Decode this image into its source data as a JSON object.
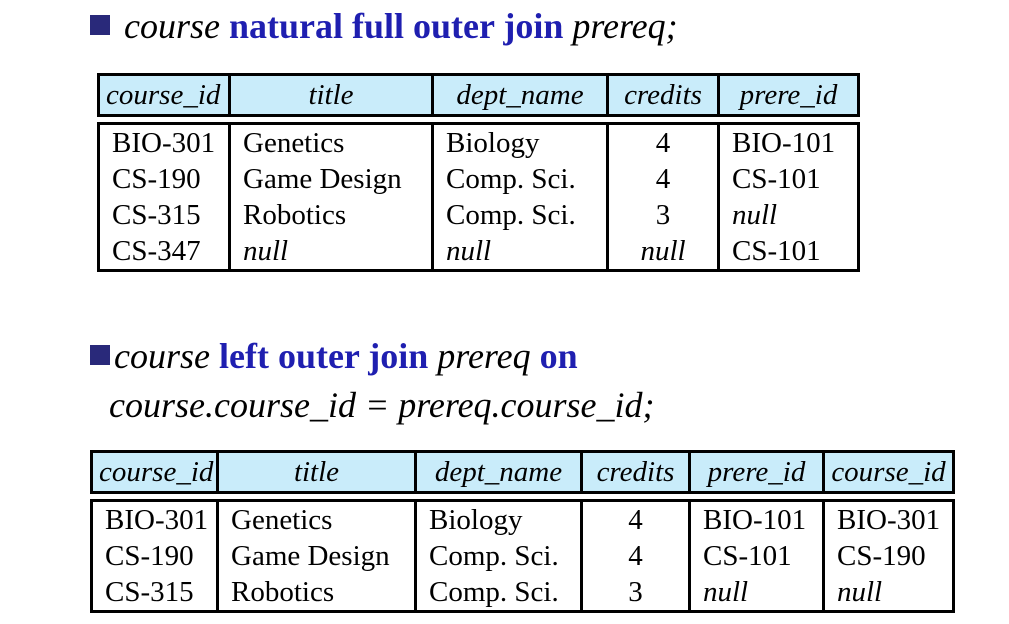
{
  "query1": {
    "left_rel": "course",
    "keyword": "natural full outer join",
    "right_rel": "prereq;"
  },
  "table1": {
    "headers": [
      "course_id",
      "title",
      "dept_name",
      "credits",
      "prere_id"
    ],
    "rows": [
      [
        "BIO-301",
        "Genetics",
        "Biology",
        "4",
        "BIO-101"
      ],
      [
        "CS-190",
        "Game Design",
        "Comp. Sci.",
        "4",
        "CS-101"
      ],
      [
        "CS-315",
        "Robotics",
        "Comp. Sci.",
        "3",
        "null"
      ],
      [
        "CS-347",
        "null",
        "null",
        "null",
        "CS-101"
      ]
    ]
  },
  "query2": {
    "left_rel": "course",
    "keyword": "left outer join",
    "right_rel": "prereq",
    "on_keyword": "on",
    "condition": "course.course_id = prereq.course_id;"
  },
  "table2": {
    "headers": [
      "course_id",
      "title",
      "dept_name",
      "credits",
      "prere_id",
      "course_id"
    ],
    "rows": [
      [
        "BIO-301",
        "Genetics",
        "Biology",
        "4",
        "BIO-101",
        "BIO-301"
      ],
      [
        "CS-190",
        "Game Design",
        "Comp. Sci.",
        "4",
        "CS-101",
        "CS-190"
      ],
      [
        "CS-315",
        "Robotics",
        "Comp. Sci.",
        "3",
        "null",
        "null"
      ]
    ]
  },
  "colors": {
    "bullet": "#29297a",
    "keyword": "#1f1fb0",
    "header_bg": "#c9ecfa"
  }
}
